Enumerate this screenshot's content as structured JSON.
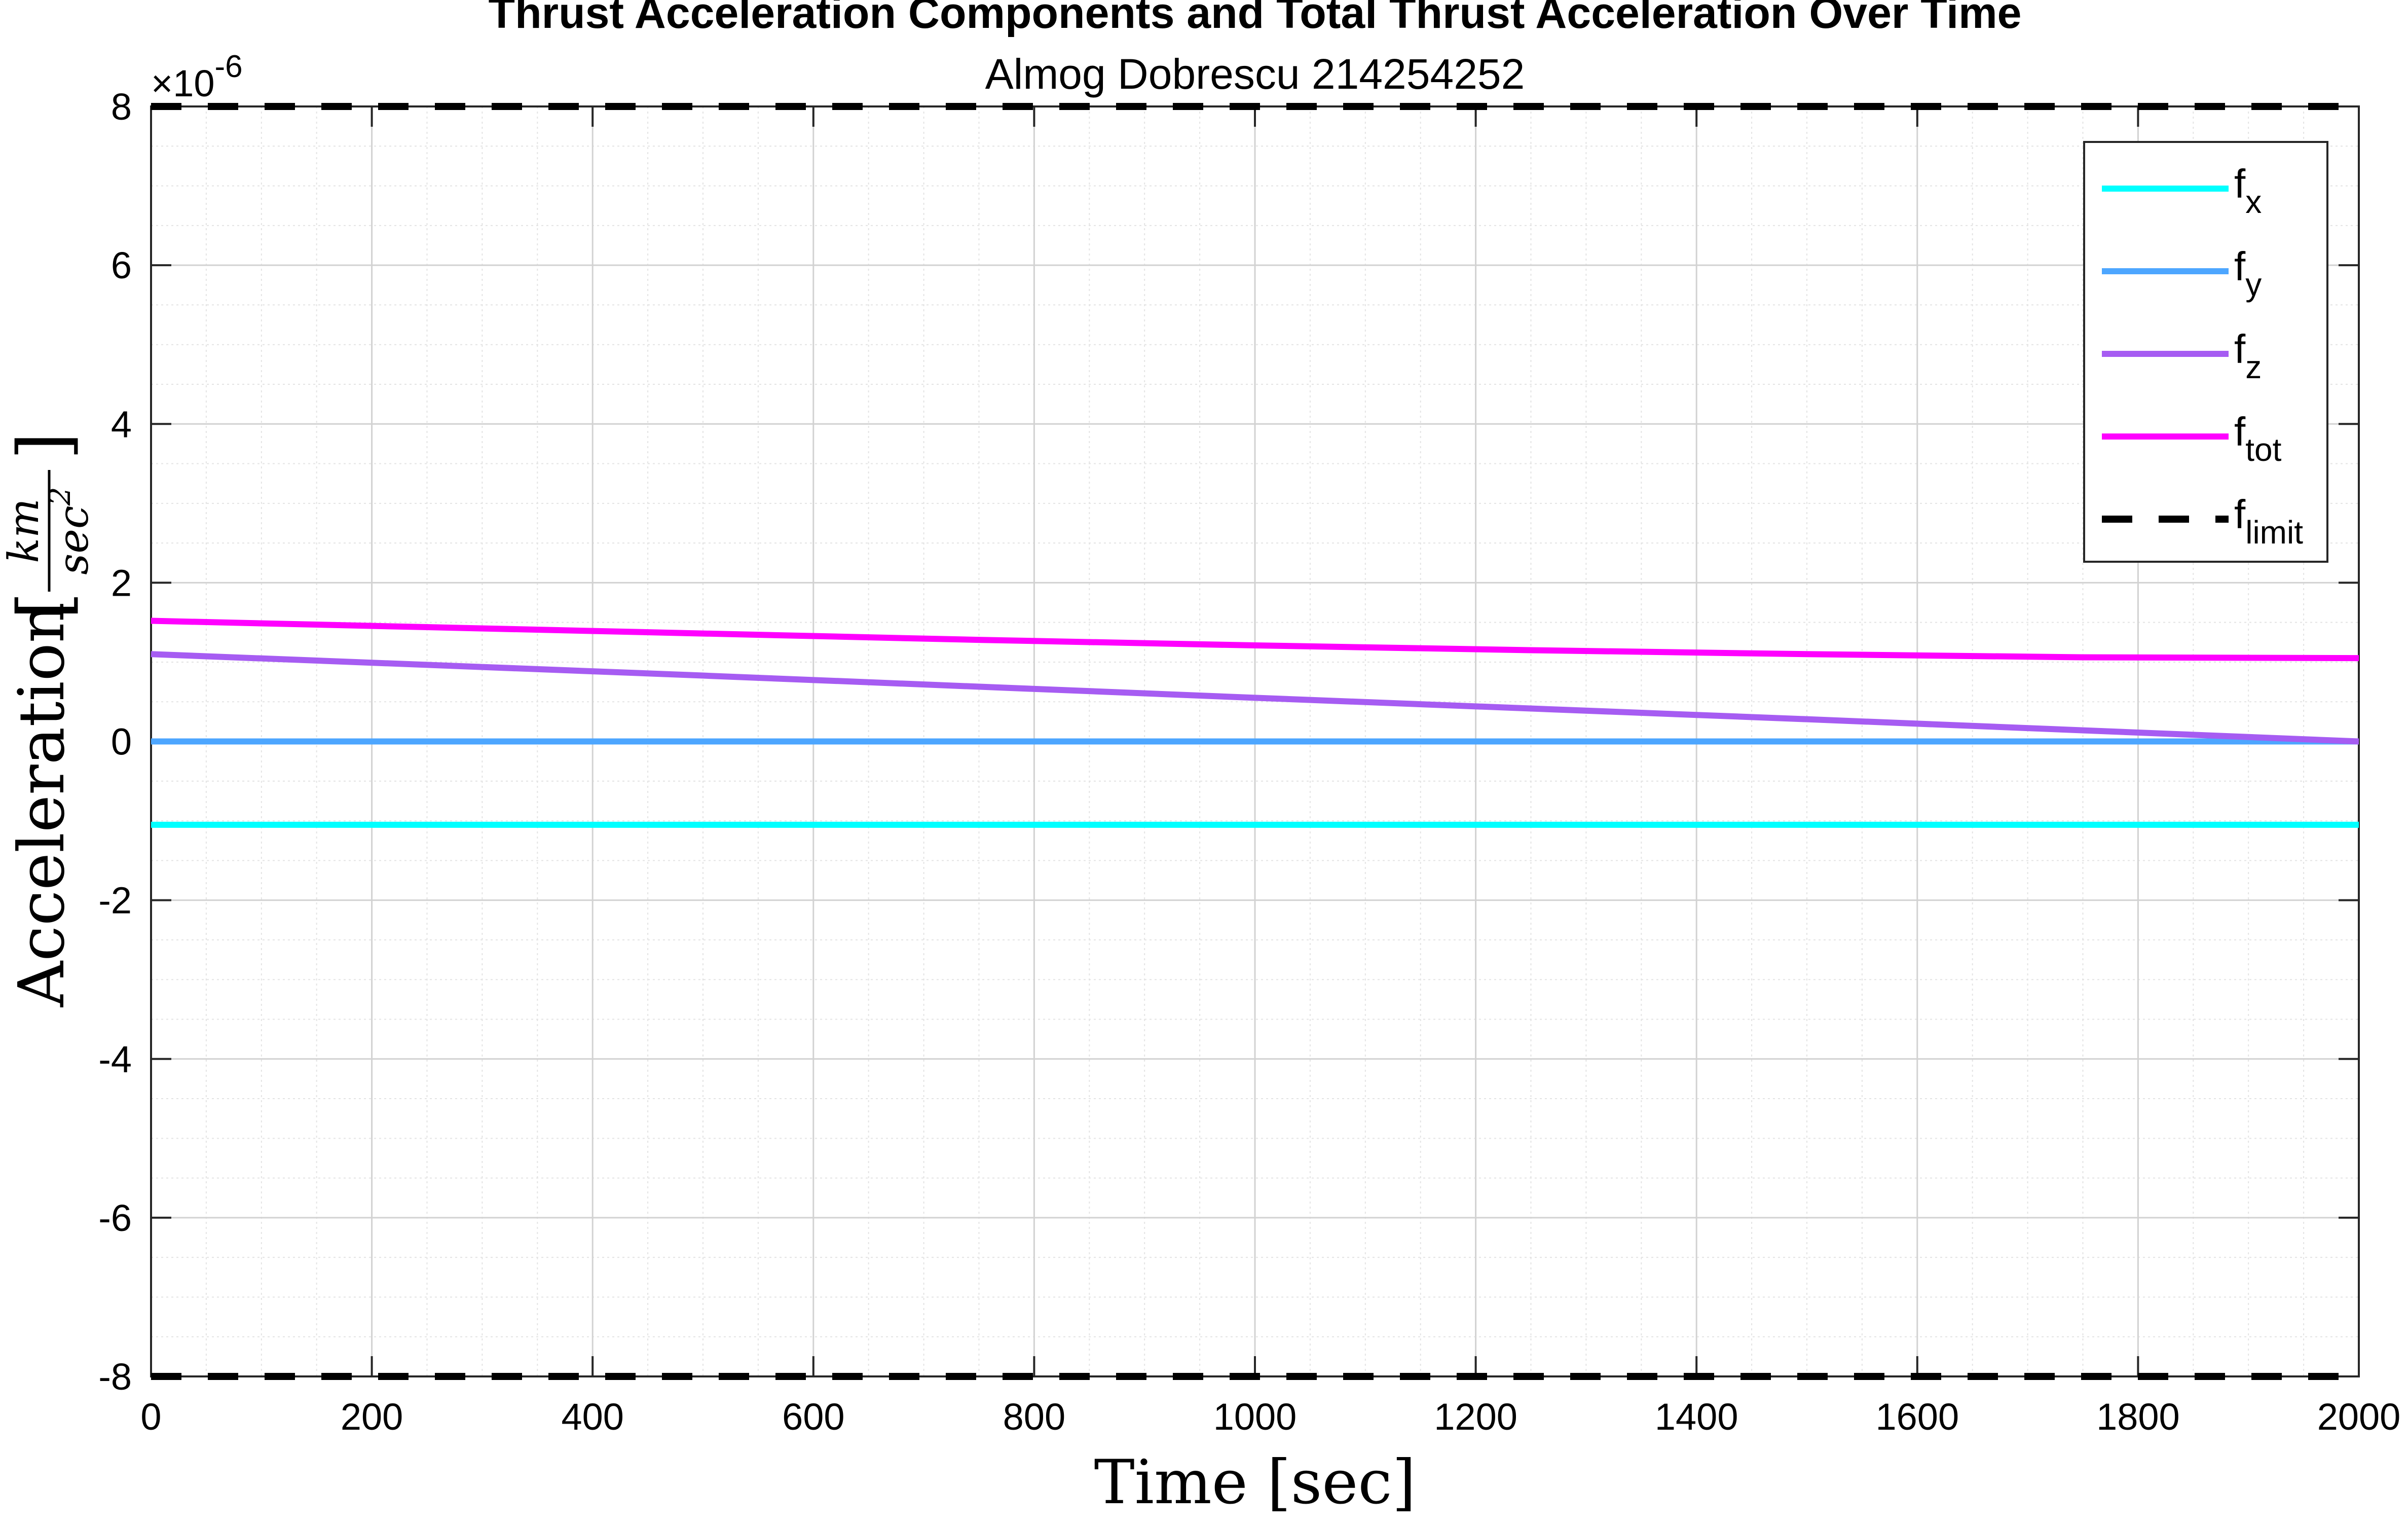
{
  "chart_data": {
    "type": "line",
    "title": "Thrust Acceleration Components and Total Thrust Acceleration Over Time",
    "subtitle": "Almog Dobrescu 214254252",
    "xlabel": "Time [sec]",
    "ylabel": "Acceleration",
    "ylabel_unit_num": "km",
    "ylabel_unit_den_base": "sec",
    "ylabel_unit_den_exp": "2",
    "y_exponent_base": "×10",
    "y_exponent_power": "-6",
    "xlim": [
      0,
      2000
    ],
    "ylim": [
      -8,
      8
    ],
    "x_ticks": [
      "0",
      "200",
      "400",
      "600",
      "800",
      "1000",
      "1200",
      "1400",
      "1600",
      "1800",
      "2000"
    ],
    "y_ticks": [
      "-8",
      "-6",
      "-4",
      "-2",
      "0",
      "2",
      "4",
      "6",
      "8"
    ],
    "grid": true,
    "minor_grid": true,
    "legend_position": "top-right",
    "series": [
      {
        "name": "f",
        "sub": "x",
        "color": "#00FFFF",
        "style": "solid",
        "x": [
          0,
          2000
        ],
        "y": [
          -1.05,
          -1.05
        ]
      },
      {
        "name": "f",
        "sub": "y",
        "color": "#4DA6FF",
        "style": "solid",
        "x": [
          0,
          2000
        ],
        "y": [
          0,
          0
        ]
      },
      {
        "name": "f",
        "sub": "z",
        "color": "#A65CF2",
        "style": "solid",
        "x": [
          0,
          500,
          1000,
          1500,
          2000
        ],
        "y": [
          1.1,
          0.83,
          0.55,
          0.28,
          0.0
        ]
      },
      {
        "name": "f",
        "sub": "tot",
        "color": "#FF00FF",
        "style": "solid",
        "x": [
          0,
          250,
          500,
          750,
          1000,
          1250,
          1500,
          1750,
          2000
        ],
        "y": [
          1.52,
          1.44,
          1.36,
          1.28,
          1.21,
          1.15,
          1.1,
          1.06,
          1.05
        ]
      },
      {
        "name": "f",
        "sub": "limit",
        "color": "#000000",
        "style": "dashed",
        "x": [
          0,
          2000
        ],
        "y": [
          8,
          8
        ],
        "mirror_y": [
          -8,
          -8
        ]
      }
    ]
  }
}
